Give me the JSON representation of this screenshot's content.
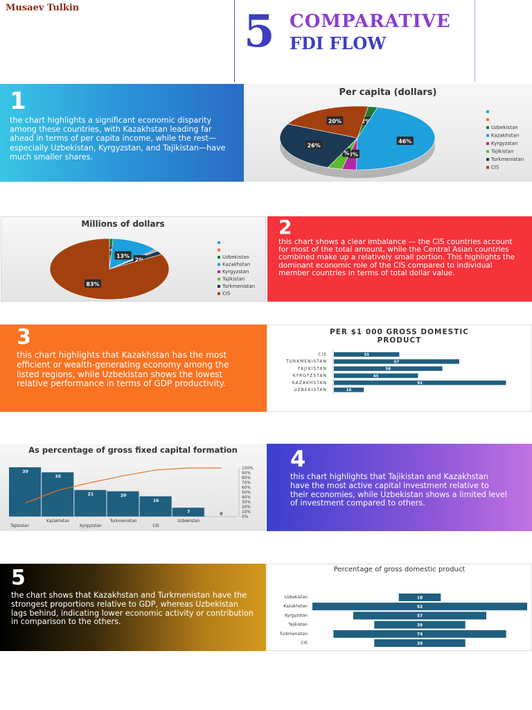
{
  "header": {
    "author": "Musaev Tulkin",
    "number": "5",
    "title_line1": "COMPARATIVE",
    "title_line2": "FDI FLOW"
  },
  "panels": [
    {
      "number": "1",
      "text": "the chart highlights a significant economic disparity among these countries, with Kazakhstan leading far ahead in terms of per capita income, while the rest—especially Uzbekistan, Kyrgyzstan, and Tajikistan—have much smaller shares."
    },
    {
      "number": "2",
      "text": "this chart shows a clear imbalance — the CIS countries account for most of the total amount, while the Central Asian countries combined make up a relatively small portion. This highlights the dominant economic role of the CIS compared to individual member countries in terms of total dollar value."
    },
    {
      "number": "3",
      "text": "this chart highlights that Kazakhstan has the most efficient or wealth-generating economy among the listed regions, while Uzbekistan shows the lowest relative performance in terms of GDP productivity."
    },
    {
      "number": "4",
      "text": "this chart highlights that Tajikistan and Kazakhstan have the most active capital investment relative to their economies, while Uzbekistan shows a limited level of investment compared to others."
    },
    {
      "number": "5",
      "text": "the chart shows that Kazakhstan and Turkmenistan have the strongest proportions relative to GDP, whereas Uzbekistan lags behind, indicating lower economic activity or contribution in comparison to the others."
    }
  ],
  "colors": {
    "uzbekistan": "#1e7a3c",
    "kazakhstan": "#1ea0dc",
    "kyrgyzstan": "#b02aa8",
    "tajikistan": "#5cb82e",
    "turkmenistan": "#1c3a56",
    "cis": "#a3400f",
    "bar": "#1f5f80",
    "pareto_line": "#e8742c"
  },
  "chart_data": [
    {
      "type": "pie",
      "title": "Per capita (dollars)",
      "legend_position": "right",
      "legend": [
        "",
        "",
        "Uzbekistan",
        "Kazakhstan",
        "Kyrgyzstan",
        "Tajikistan",
        "Turkmenistan",
        "CIS"
      ],
      "slices": [
        {
          "name": "Uzbekistan",
          "value": 2,
          "label": "2%"
        },
        {
          "name": "Kazakhstan",
          "value": 46,
          "label": "46%"
        },
        {
          "name": "Kyrgyzstan",
          "value": 3,
          "label": "3%"
        },
        {
          "name": "Tajikistan",
          "value": 3,
          "label": "%"
        },
        {
          "name": "Turkmenistan",
          "value": 26,
          "label": "26%"
        },
        {
          "name": "CIS",
          "value": 20,
          "label": "20%"
        }
      ]
    },
    {
      "type": "pie",
      "title": "Millions of dollars",
      "legend_position": "right",
      "legend": [
        "",
        "",
        "Uzbekistan",
        "Kazakhstan",
        "Kyrgyzstan",
        "Tajikistan",
        "Turkmenistan",
        "CIS"
      ],
      "slices": [
        {
          "name": "Uzbekistan",
          "value": 1,
          "label": "1%"
        },
        {
          "name": "Kazakhstan",
          "value": 13,
          "label": "13%"
        },
        {
          "name": "Kyrgyzstan",
          "value": 0.5,
          "label": ""
        },
        {
          "name": "Tajikistan",
          "value": 0.5,
          "label": ""
        },
        {
          "name": "Turkmenistan",
          "value": 2,
          "label": "2%"
        },
        {
          "name": "CIS",
          "value": 83,
          "label": "83%"
        }
      ]
    },
    {
      "type": "bar",
      "orientation": "horizontal",
      "title": "PER $1 000 GROSS DOMESTIC PRODUCT",
      "categories": [
        "CIS",
        "TURKMENISTAN",
        "TAJIKISTAN",
        "KYRGYZSTAN",
        "KAZAKHSTAN",
        "UZBEKISTAN"
      ],
      "values": [
        35,
        67,
        58,
        45,
        92,
        16
      ],
      "xlim": [
        0,
        100
      ]
    },
    {
      "type": "bar",
      "subtype": "pareto",
      "title": "As percentage of gross fixed capital formation",
      "categories": [
        "Tajikistan",
        "Kazakhstan",
        "Kyrgyzstan",
        "Turkmenistan",
        "CIS",
        "Uzbekistan",
        ""
      ],
      "values": [
        39,
        35,
        21,
        20,
        16,
        7,
        0
      ],
      "cumulative_percent": [
        28,
        54,
        70,
        84,
        96,
        100,
        100
      ],
      "ylim": [
        0,
        45
      ],
      "y2_ticks": [
        "100%",
        "90%",
        "80%",
        "70%",
        "60%",
        "50%",
        "40%",
        "30%",
        "20%",
        "10%",
        "0%"
      ]
    },
    {
      "type": "bar",
      "subtype": "funnel",
      "title": "Percentage of gross domestic product",
      "categories": [
        "Uzbekistan",
        "Kazakhstan",
        "Kyrgyzstan",
        "Tajikistan",
        "Turkmenistan",
        "CIS"
      ],
      "values": [
        18,
        92,
        57,
        39,
        74,
        39
      ],
      "xlim": [
        0,
        92
      ]
    }
  ]
}
